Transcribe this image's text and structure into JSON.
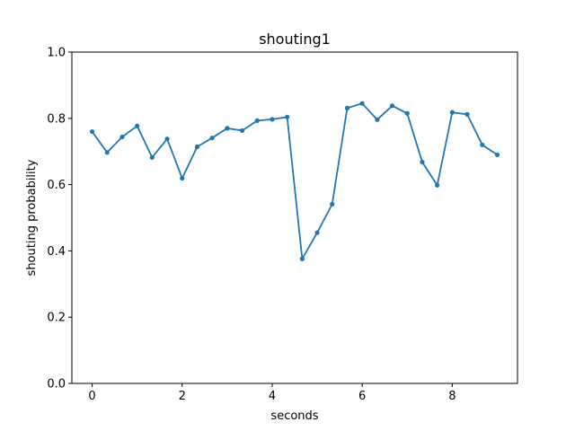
{
  "chart_data": {
    "type": "line",
    "title": "shouting1",
    "xlabel": "seconds",
    "ylabel": "shouting probability",
    "xlim": [
      -0.45,
      9.45
    ],
    "ylim": [
      0.0,
      1.0
    ],
    "xticks": [
      0,
      2,
      4,
      6,
      8
    ],
    "yticks": [
      0.0,
      0.2,
      0.4,
      0.6,
      0.8,
      1.0
    ],
    "xtick_labels": [
      "0",
      "2",
      "4",
      "6",
      "8"
    ],
    "ytick_labels": [
      "0.0",
      "0.2",
      "0.4",
      "0.6",
      "0.8",
      "1.0"
    ],
    "grid": false,
    "series": [
      {
        "color": "#1f77b4",
        "x": [
          0,
          0.333,
          0.667,
          1.0,
          1.333,
          1.667,
          2.0,
          2.333,
          2.667,
          3.0,
          3.333,
          3.667,
          4.0,
          4.333,
          4.667,
          5.0,
          5.333,
          5.667,
          6.0,
          6.333,
          6.667,
          7.0,
          7.333,
          7.667,
          8.0,
          8.333,
          8.667,
          9.0
        ],
        "y": [
          0.76,
          0.697,
          0.744,
          0.777,
          0.682,
          0.738,
          0.619,
          0.714,
          0.741,
          0.77,
          0.763,
          0.793,
          0.797,
          0.804,
          0.376,
          0.455,
          0.541,
          0.831,
          0.845,
          0.796,
          0.838,
          0.815,
          0.668,
          0.598,
          0.818,
          0.812,
          0.72,
          0.69
        ]
      }
    ]
  }
}
